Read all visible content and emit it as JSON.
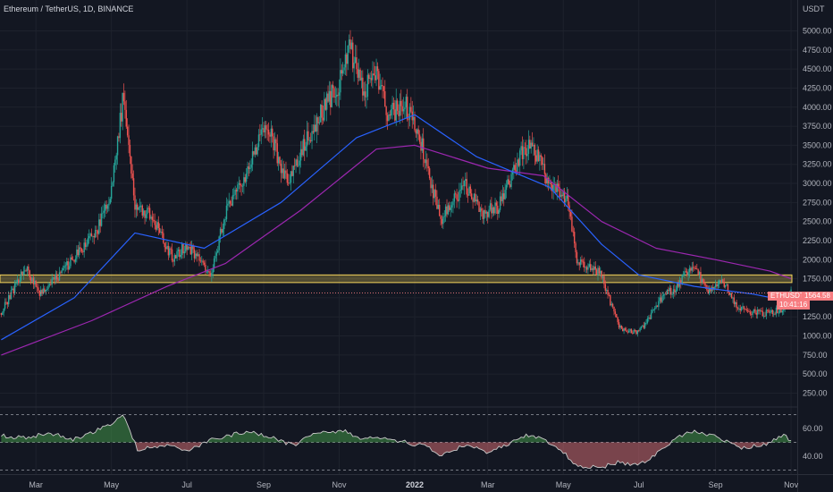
{
  "header": {
    "title": "Ethereum / TetherUS, 1D, BINANCE",
    "currency": "USDT"
  },
  "price_badge": {
    "symbol": "ETHUSDT",
    "price": "1564.58",
    "countdown": "10:41:16"
  },
  "colors": {
    "up": "#26a69a",
    "down": "#ef5350",
    "ma_fast": "#2962ff",
    "ma_slow": "#9c27b0",
    "zone": "#f5d35b",
    "rsi": "#c9c9c9",
    "rsi_up": "#4caf50",
    "rsi_down": "#f77c80"
  },
  "chart_data": [
    {
      "type": "candlestick",
      "y_axis_ticks": [
        "5000.00",
        "4750.00",
        "4500.00",
        "4250.00",
        "4000.00",
        "3750.00",
        "3500.00",
        "3250.00",
        "3000.00",
        "2750.00",
        "2500.00",
        "2250.00",
        "2000.00",
        "1750.00",
        "1500.00",
        "1250.00",
        "1000.00",
        "750.00",
        "500.00",
        "250.00"
      ],
      "ylim": [
        100,
        5200
      ],
      "x_axis_ticks": [
        "Mar",
        "May",
        "Jul",
        "Sep",
        "Nov",
        "2022",
        "Mar",
        "May",
        "Jul",
        "Sep",
        "Nov"
      ],
      "close_path": [
        [
          "2021-02-01",
          1300
        ],
        [
          "2021-02-20",
          1900
        ],
        [
          "2021-03-05",
          1550
        ],
        [
          "2021-03-20",
          1800
        ],
        [
          "2021-04-05",
          2100
        ],
        [
          "2021-04-20",
          2400
        ],
        [
          "2021-05-01",
          2900
        ],
        [
          "2021-05-11",
          4200
        ],
        [
          "2021-05-20",
          2700
        ],
        [
          "2021-06-01",
          2600
        ],
        [
          "2021-06-20",
          2000
        ],
        [
          "2021-07-01",
          2200
        ],
        [
          "2021-07-20",
          1800
        ],
        [
          "2021-08-01",
          2600
        ],
        [
          "2021-08-20",
          3200
        ],
        [
          "2021-09-03",
          3800
        ],
        [
          "2021-09-20",
          3000
        ],
        [
          "2021-10-01",
          3400
        ],
        [
          "2021-10-20",
          4000
        ],
        [
          "2021-11-01",
          4300
        ],
        [
          "2021-11-09",
          4800
        ],
        [
          "2021-11-20",
          4200
        ],
        [
          "2021-12-01",
          4500
        ],
        [
          "2021-12-10",
          3900
        ],
        [
          "2021-12-25",
          4000
        ],
        [
          "2022-01-05",
          3600
        ],
        [
          "2022-01-22",
          2500
        ],
        [
          "2022-02-10",
          3000
        ],
        [
          "2022-02-24",
          2600
        ],
        [
          "2022-03-10",
          2700
        ],
        [
          "2022-03-28",
          3400
        ],
        [
          "2022-04-05",
          3500
        ],
        [
          "2022-04-20",
          3000
        ],
        [
          "2022-05-05",
          2800
        ],
        [
          "2022-05-12",
          2000
        ],
        [
          "2022-06-01",
          1800
        ],
        [
          "2022-06-15",
          1100
        ],
        [
          "2022-07-01",
          1050
        ],
        [
          "2022-07-20",
          1500
        ],
        [
          "2022-08-01",
          1650
        ],
        [
          "2022-08-14",
          1950
        ],
        [
          "2022-08-25",
          1600
        ],
        [
          "2022-09-08",
          1700
        ],
        [
          "2022-09-20",
          1350
        ],
        [
          "2022-10-10",
          1300
        ],
        [
          "2022-10-25",
          1350
        ],
        [
          "2022-11-01",
          1564
        ]
      ],
      "series": [
        {
          "name": "",
          "type": "moving-average",
          "points": [
            [
              "2021-02-01",
              950
            ],
            [
              "2021-04-01",
              1500
            ],
            [
              "2021-05-20",
              2350
            ],
            [
              "2021-07-15",
              2150
            ],
            [
              "2021-09-15",
              2750
            ],
            [
              "2021-11-15",
              3600
            ],
            [
              "2022-01-01",
              3900
            ],
            [
              "2022-02-20",
              3350
            ],
            [
              "2022-04-20",
              2950
            ],
            [
              "2022-06-01",
              2200
            ],
            [
              "2022-07-01",
              1800
            ],
            [
              "2022-08-15",
              1650
            ],
            [
              "2022-10-01",
              1550
            ],
            [
              "2022-11-01",
              1450
            ]
          ]
        },
        {
          "name": "",
          "type": "moving-average",
          "points": [
            [
              "2021-02-01",
              750
            ],
            [
              "2021-04-15",
              1200
            ],
            [
              "2021-06-15",
              1650
            ],
            [
              "2021-08-01",
              1950
            ],
            [
              "2021-10-01",
              2650
            ],
            [
              "2021-12-01",
              3450
            ],
            [
              "2022-01-01",
              3500
            ],
            [
              "2022-03-01",
              3200
            ],
            [
              "2022-04-15",
              3100
            ],
            [
              "2022-06-01",
              2500
            ],
            [
              "2022-07-15",
              2150
            ],
            [
              "2022-09-01",
              2000
            ],
            [
              "2022-10-15",
              1850
            ],
            [
              "2022-11-01",
              1750
            ]
          ]
        }
      ],
      "zone": [
        1700,
        1800
      ]
    },
    {
      "type": "area",
      "name": "",
      "y_axis_ticks": [
        "60.00",
        "40.00"
      ],
      "levels": [
        70,
        50,
        30
      ],
      "ylim": [
        25,
        75
      ],
      "x": [
        "2021-02-01",
        "2021-02-20",
        "2021-03-10",
        "2021-04-01",
        "2021-05-01",
        "2021-05-10",
        "2021-05-22",
        "2021-06-15",
        "2021-07-01",
        "2021-07-20",
        "2021-08-05",
        "2021-08-20",
        "2021-09-05",
        "2021-09-25",
        "2021-10-15",
        "2021-11-05",
        "2021-11-20",
        "2021-12-05",
        "2021-12-25",
        "2022-01-10",
        "2022-01-22",
        "2022-02-10",
        "2022-03-01",
        "2022-03-25",
        "2022-04-05",
        "2022-04-25",
        "2022-05-12",
        "2022-06-01",
        "2022-06-15",
        "2022-07-01",
        "2022-07-20",
        "2022-08-05",
        "2022-08-14",
        "2022-09-01",
        "2022-09-20",
        "2022-10-10",
        "2022-10-25",
        "2022-11-01"
      ],
      "values": [
        55,
        53,
        57,
        52,
        63,
        70,
        45,
        48,
        43,
        52,
        55,
        58,
        54,
        48,
        57,
        58,
        52,
        54,
        50,
        47,
        40,
        48,
        43,
        52,
        56,
        48,
        33,
        32,
        36,
        33,
        45,
        55,
        58,
        54,
        46,
        48,
        55,
        52
      ]
    }
  ]
}
